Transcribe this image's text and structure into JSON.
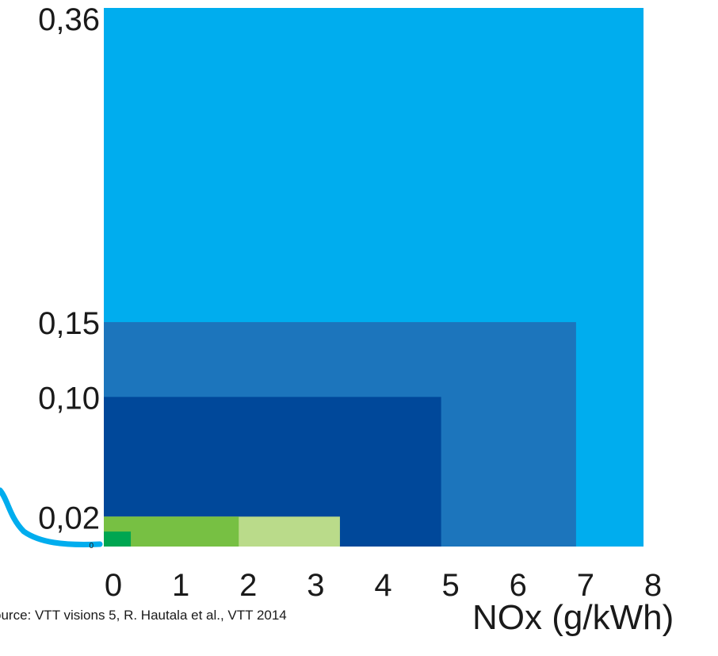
{
  "chart_data": {
    "type": "area",
    "xlabel": "NOx (g/kWh)",
    "ylabel": "",
    "title": "",
    "xlim": [
      0,
      8
    ],
    "ylim": [
      0,
      0.36
    ],
    "x_ticks": [
      "0",
      "1",
      "2",
      "3",
      "4",
      "5",
      "6",
      "7",
      "8"
    ],
    "y_ticks": [
      {
        "value": 0.36,
        "label": "0,36"
      },
      {
        "value": 0.15,
        "label": "0,15"
      },
      {
        "value": 0.1,
        "label": "0,10"
      },
      {
        "value": 0.02,
        "label": "0,02"
      },
      {
        "value": 0,
        "label": "0"
      }
    ],
    "regions": [
      {
        "nox_max": 8.0,
        "pm_max": 0.36,
        "color": "#00ADEE"
      },
      {
        "nox_max": 7.0,
        "pm_max": 0.15,
        "color": "#1C75BC"
      },
      {
        "nox_max": 5.0,
        "pm_max": 0.1,
        "color": "#00489A"
      },
      {
        "nox_max": 3.5,
        "pm_max": 0.02,
        "color": "#BADB8A"
      },
      {
        "nox_max": 2.0,
        "pm_max": 0.02,
        "color": "#77C043"
      },
      {
        "nox_max": 0.4,
        "pm_max": 0.01,
        "color": "#00A651"
      }
    ],
    "grid": false,
    "legend": "none"
  },
  "source_text": "ource: VTT visions 5, R. Hautala et al., VTT 2014",
  "connector_color": "#00ADEE"
}
